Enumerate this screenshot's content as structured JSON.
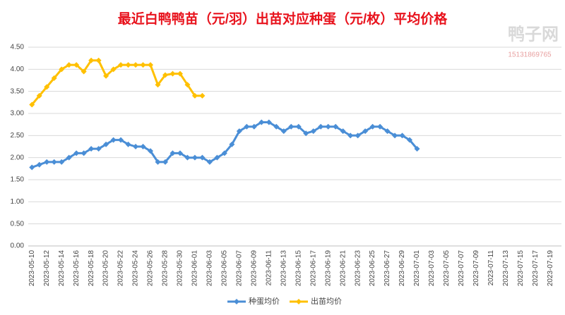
{
  "chart_data": {
    "type": "line",
    "title": "最近白鸭鸭苗（元/羽）出苗对应种蛋（元/枚）平均价格",
    "watermark": "鸭子网",
    "watermark_phone": "15131869765",
    "categories": [
      "2023-05-10",
      null,
      "2023-05-12",
      null,
      "2023-05-14",
      null,
      "2023-05-16",
      null,
      "2023-05-18",
      null,
      "2023-05-20",
      null,
      "2023-05-22",
      null,
      "2023-05-24",
      null,
      "2023-05-26",
      null,
      "2023-05-28",
      null,
      "2023-05-30",
      null,
      "2023-06-01",
      null,
      "2023-06-03",
      null,
      "2023-06-05",
      null,
      "2023-06-07",
      null,
      "2023-06-09",
      null,
      "2023-06-11",
      null,
      "2023-06-13",
      null,
      "2023-06-15",
      null,
      "2023-06-17",
      null,
      "2023-06-19",
      null,
      "2023-06-21",
      null,
      "2023-06-23",
      null,
      "2023-06-25",
      null,
      "2023-06-27",
      null,
      "2023-06-29",
      null,
      "2023-07-01",
      null,
      "2023-07-03",
      null,
      "2023-07-05",
      null,
      "2023-07-07",
      null,
      "2023-07-09",
      null,
      "2023-07-11",
      null,
      "2023-07-13",
      null,
      "2023-07-15",
      null,
      "2023-07-17",
      null,
      "2023-07-19",
      null
    ],
    "series": [
      {
        "name": "种蛋均价",
        "color": "#4a8ed6",
        "values": [
          1.78,
          1.84,
          1.9,
          1.9,
          1.9,
          2.0,
          2.1,
          2.1,
          2.2,
          2.2,
          2.3,
          2.4,
          2.4,
          2.3,
          2.25,
          2.25,
          2.15,
          1.9,
          1.9,
          2.1,
          2.1,
          2.0,
          2.0,
          2.0,
          1.9,
          2.0,
          2.1,
          2.3,
          2.6,
          2.7,
          2.7,
          2.8,
          2.8,
          2.7,
          2.6,
          2.7,
          2.7,
          2.55,
          2.6,
          2.7,
          2.7,
          2.7,
          2.6,
          2.5,
          2.5,
          2.6,
          2.7,
          2.7,
          2.6,
          2.5,
          2.5,
          2.4,
          2.2,
          null,
          null,
          null,
          null,
          null,
          null,
          null,
          null,
          null,
          null,
          null,
          null,
          null,
          null,
          null,
          null,
          null,
          null,
          null
        ]
      },
      {
        "name": "出苗均价",
        "color": "#ffc000",
        "values": [
          3.2,
          3.4,
          3.6,
          3.8,
          4.0,
          4.1,
          4.1,
          3.95,
          4.2,
          4.2,
          3.85,
          4.0,
          4.1,
          4.1,
          4.1,
          4.1,
          4.1,
          3.65,
          3.87,
          3.9,
          3.9,
          3.65,
          3.4,
          3.4,
          null,
          null,
          null,
          null,
          null,
          null,
          null,
          null,
          null,
          null,
          null,
          null,
          null,
          null,
          null,
          null,
          null,
          null,
          null,
          null,
          null,
          null,
          null,
          null,
          null,
          null,
          null,
          null,
          null,
          null,
          null,
          null,
          null,
          null,
          null,
          null,
          null,
          null,
          null,
          null,
          null,
          null,
          null,
          null,
          null,
          null,
          null,
          null
        ]
      }
    ],
    "ylim": [
      0,
      4.5
    ],
    "yticks": [
      {
        "value": 0,
        "label": "0.00"
      },
      {
        "value": 0.5,
        "label": "0.50"
      },
      {
        "value": 1,
        "label": "1.00"
      },
      {
        "value": 1.5,
        "label": "1.50"
      },
      {
        "value": 2,
        "label": "2.00"
      },
      {
        "value": 2.5,
        "label": "2.50"
      },
      {
        "value": 3,
        "label": "3.00"
      },
      {
        "value": 3.5,
        "label": "3.50"
      },
      {
        "value": 4,
        "label": "4.00"
      },
      {
        "value": 4.5,
        "label": "4.50"
      }
    ],
    "grid": true,
    "legend": "bottom"
  }
}
